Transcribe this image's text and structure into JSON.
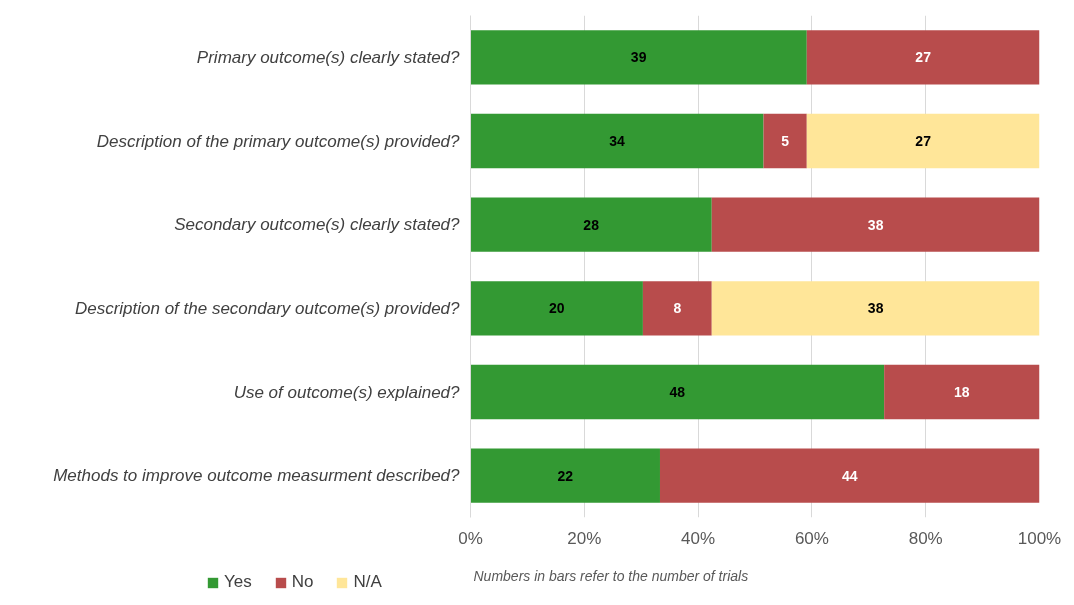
{
  "chart_data": {
    "type": "bar",
    "orientation": "horizontal",
    "stacked": true,
    "categories": [
      "Primary outcome(s) clearly stated?",
      "Description of the primary outcome(s) provided?",
      "Secondary outcome(s) clearly stated?",
      "Description of the secondary outcome(s) provided?",
      "Use of outcome(s) explained?",
      "Methods to improve outcome measurment described?"
    ],
    "series": [
      {
        "name": "Yes",
        "color": "#339933",
        "values": [
          59.1,
          51.5,
          42.4,
          30.3,
          72.7,
          33.3
        ]
      },
      {
        "name": "No",
        "color": "#b84c4c",
        "values": [
          40.9,
          7.6,
          57.6,
          12.1,
          27.3,
          66.7
        ]
      },
      {
        "name": "N/A",
        "color": "#ffe699",
        "values": [
          null,
          40.9,
          null,
          57.6,
          null,
          null
        ]
      }
    ],
    "xlim": [
      0,
      100
    ],
    "xticks": [
      {
        "value": 0,
        "label": "0%"
      },
      {
        "value": 20,
        "label": "20%"
      },
      {
        "value": 40,
        "label": "40%"
      },
      {
        "value": 60,
        "label": "60%"
      },
      {
        "value": 80,
        "label": "80%"
      },
      {
        "value": 100,
        "label": "100%"
      }
    ],
    "grid": "x",
    "legend": "bottom",
    "annotations": [
      "Numbers in bars refer to the number of trials",
      "39",
      "27",
      "34",
      "5",
      "27",
      "28",
      "38",
      "20",
      "8",
      "38",
      "48",
      "18",
      "22",
      "44"
    ]
  }
}
